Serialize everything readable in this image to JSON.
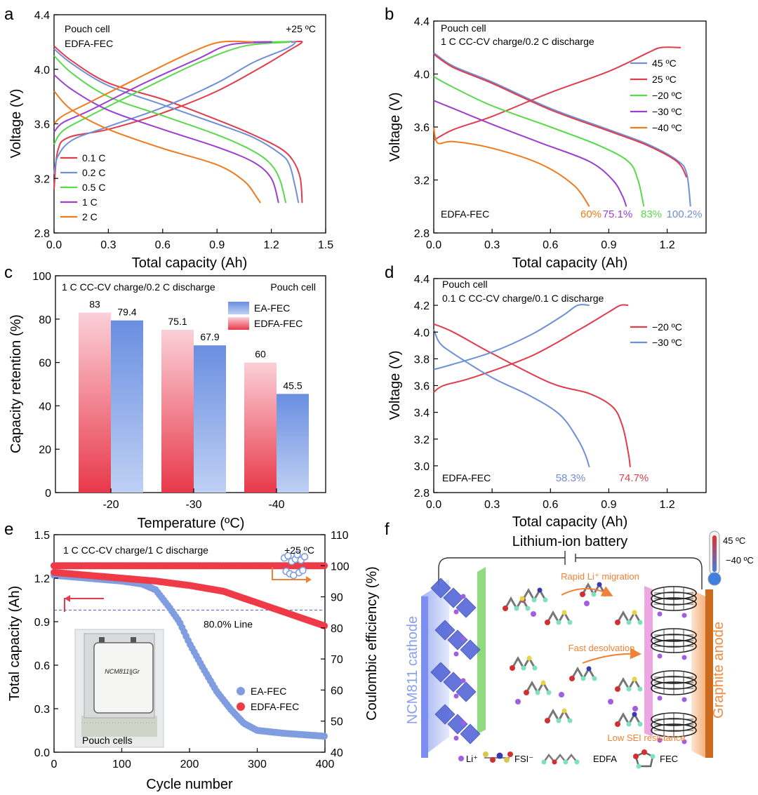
{
  "colors": {
    "red": "#e03c4c",
    "blue": "#6f8fd6",
    "green": "#59d94c",
    "purple": "#9b3fd0",
    "orange": "#f07a1e",
    "red_marker": "#ef3b47",
    "blue_marker": "#7f9de0",
    "annot_orange": "#f08236"
  },
  "chart_data": [
    {
      "id": "a",
      "panel_letter": "a",
      "type": "line",
      "title": "Pouch cell",
      "subtitle": "EDFA-FEC",
      "corner_label": "+25 ºC",
      "xlabel": "Total capacity (Ah)",
      "ylabel": "Voltage (V)",
      "xlim": [
        0,
        1.5
      ],
      "ylim": [
        2.8,
        4.4
      ],
      "x_ticks": [
        "0.0",
        "0.3",
        "0.6",
        "0.9",
        "1.2",
        "1.5"
      ],
      "y_ticks": [
        "2.8",
        "3.2",
        "3.6",
        "4.0",
        "4.4"
      ],
      "legend_position": "bottom-left",
      "series": [
        {
          "name": "0.1 C",
          "color": "#e03c4c",
          "charge": [
            [
              0,
              3.12
            ],
            [
              0.02,
              3.4
            ],
            [
              0.08,
              3.5
            ],
            [
              0.3,
              3.56
            ],
            [
              0.6,
              3.68
            ],
            [
              0.9,
              3.84
            ],
            [
              1.15,
              4.02
            ],
            [
              1.3,
              4.14
            ],
            [
              1.37,
              4.2
            ],
            [
              1.31,
              4.2
            ]
          ],
          "discharge": [
            [
              0,
              4.17
            ],
            [
              0.1,
              4.06
            ],
            [
              0.3,
              3.9
            ],
            [
              0.6,
              3.78
            ],
            [
              0.9,
              3.63
            ],
            [
              1.1,
              3.52
            ],
            [
              1.25,
              3.42
            ],
            [
              1.32,
              3.33
            ],
            [
              1.36,
              3.2
            ],
            [
              1.37,
              3.02
            ]
          ]
        },
        {
          "name": "0.2 C",
          "color": "#6f8fd6",
          "charge": [
            [
              0,
              3.23
            ],
            [
              0.02,
              3.36
            ],
            [
              0.1,
              3.48
            ],
            [
              0.3,
              3.58
            ],
            [
              0.6,
              3.72
            ],
            [
              0.9,
              3.9
            ],
            [
              1.1,
              4.05
            ],
            [
              1.28,
              4.15
            ],
            [
              1.33,
              4.2
            ],
            [
              1.25,
              4.2
            ]
          ],
          "discharge": [
            [
              0,
              4.15
            ],
            [
              0.1,
              4.04
            ],
            [
              0.3,
              3.88
            ],
            [
              0.6,
              3.74
            ],
            [
              0.9,
              3.6
            ],
            [
              1.1,
              3.5
            ],
            [
              1.25,
              3.38
            ],
            [
              1.3,
              3.3
            ],
            [
              1.33,
              3.15
            ],
            [
              1.35,
              3.02
            ]
          ]
        },
        {
          "name": "0.5 C",
          "color": "#59d94c",
          "charge": [
            [
              0,
              3.45
            ],
            [
              0.05,
              3.55
            ],
            [
              0.2,
              3.66
            ],
            [
              0.5,
              3.86
            ],
            [
              0.8,
              4.05
            ],
            [
              1.05,
              4.17
            ],
            [
              1.3,
              4.2
            ],
            [
              1.14,
              4.2
            ]
          ],
          "discharge": [
            [
              0,
              4.1
            ],
            [
              0.1,
              3.97
            ],
            [
              0.3,
              3.8
            ],
            [
              0.6,
              3.66
            ],
            [
              0.9,
              3.52
            ],
            [
              1.1,
              3.4
            ],
            [
              1.2,
              3.3
            ],
            [
              1.25,
              3.18
            ],
            [
              1.28,
              3.02
            ]
          ]
        },
        {
          "name": "1 C",
          "color": "#9b3fd0",
          "charge": [
            [
              0,
              3.54
            ],
            [
              0.05,
              3.61
            ],
            [
              0.2,
              3.7
            ],
            [
              0.5,
              3.9
            ],
            [
              0.8,
              4.08
            ],
            [
              0.97,
              4.18
            ],
            [
              1.2,
              4.2
            ],
            [
              1.06,
              4.2
            ]
          ],
          "discharge": [
            [
              0,
              3.96
            ],
            [
              0.1,
              3.85
            ],
            [
              0.3,
              3.7
            ],
            [
              0.6,
              3.56
            ],
            [
              0.9,
              3.43
            ],
            [
              1.1,
              3.32
            ],
            [
              1.2,
              3.2
            ],
            [
              1.24,
              3.02
            ]
          ]
        },
        {
          "name": "2 C",
          "color": "#f07a1e",
          "charge": [
            [
              0,
              3.6
            ],
            [
              0.05,
              3.66
            ],
            [
              0.2,
              3.76
            ],
            [
              0.5,
              3.96
            ],
            [
              0.75,
              4.12
            ],
            [
              0.92,
              4.2
            ],
            [
              1.1,
              4.2
            ]
          ],
          "discharge": [
            [
              0,
              3.84
            ],
            [
              0.1,
              3.7
            ],
            [
              0.3,
              3.56
            ],
            [
              0.6,
              3.42
            ],
            [
              0.9,
              3.3
            ],
            [
              1.05,
              3.18
            ],
            [
              1.12,
              3.06
            ],
            [
              1.14,
              3.02
            ]
          ]
        }
      ]
    },
    {
      "id": "b",
      "panel_letter": "b",
      "type": "line",
      "title": "Pouch cell",
      "subtitle": "1 C CC-CV charge/0.2 C discharge",
      "corner_label": "EDFA-FEC",
      "xlabel": "Total capacity (Ah)",
      "ylabel": "Voltage (V)",
      "xlim": [
        0,
        1.4
      ],
      "ylim": [
        2.8,
        4.4
      ],
      "x_ticks": [
        "0.0",
        "0.3",
        "0.6",
        "0.9",
        "1.2"
      ],
      "y_ticks": [
        "2.8",
        "3.2",
        "3.6",
        "4.0",
        "4.4"
      ],
      "legend_position": "top-right",
      "series": [
        {
          "name": "45 ºC",
          "color": "#6f8fd6",
          "label": "100.2%",
          "discharge": [
            [
              0,
              4.16
            ],
            [
              0.1,
              4.06
            ],
            [
              0.3,
              3.94
            ],
            [
              0.6,
              3.74
            ],
            [
              0.9,
              3.58
            ],
            [
              1.1,
              3.47
            ],
            [
              1.25,
              3.35
            ],
            [
              1.3,
              3.25
            ],
            [
              1.32,
              3.0
            ]
          ]
        },
        {
          "name": "25 ºC",
          "color": "#e03c4c",
          "charge": [
            [
              0,
              3.5
            ],
            [
              0.1,
              3.58
            ],
            [
              0.3,
              3.68
            ],
            [
              0.6,
              3.86
            ],
            [
              0.9,
              4.02
            ],
            [
              1.1,
              4.16
            ],
            [
              1.17,
              4.2
            ],
            [
              1.27,
              4.2
            ]
          ],
          "discharge": [
            [
              0,
              4.15
            ],
            [
              0.1,
              4.05
            ],
            [
              0.3,
              3.93
            ],
            [
              0.6,
              3.73
            ],
            [
              0.9,
              3.57
            ],
            [
              1.1,
              3.46
            ],
            [
              1.25,
              3.34
            ],
            [
              1.3,
              3.22
            ]
          ]
        },
        {
          "name": "−20 ºC",
          "color": "#59d94c",
          "label": "83%",
          "discharge": [
            [
              0,
              3.98
            ],
            [
              0.1,
              3.9
            ],
            [
              0.3,
              3.76
            ],
            [
              0.6,
              3.6
            ],
            [
              0.85,
              3.46
            ],
            [
              1.0,
              3.34
            ],
            [
              1.05,
              3.2
            ],
            [
              1.08,
              3.0
            ]
          ]
        },
        {
          "name": "−30 ºC",
          "color": "#9b3fd0",
          "label": "75.1%",
          "discharge": [
            [
              0,
              3.8
            ],
            [
              0.1,
              3.74
            ],
            [
              0.3,
              3.62
            ],
            [
              0.55,
              3.48
            ],
            [
              0.8,
              3.34
            ],
            [
              0.92,
              3.2
            ],
            [
              0.97,
              3.08
            ],
            [
              0.99,
              3.0
            ]
          ]
        },
        {
          "name": "−40 ºC",
          "color": "#f07a1e",
          "label": "60%",
          "discharge": [
            [
              0,
              3.6
            ],
            [
              0.02,
              3.48
            ],
            [
              0.1,
              3.49
            ],
            [
              0.3,
              3.44
            ],
            [
              0.55,
              3.32
            ],
            [
              0.72,
              3.16
            ],
            [
              0.8,
              3.0
            ]
          ]
        }
      ]
    },
    {
      "id": "c",
      "panel_letter": "c",
      "type": "bar",
      "title": "1 C CC-CV charge/0.2 C discharge",
      "corner_label": "Pouch cell",
      "xlabel": "Temperature (ºC)",
      "ylabel": "Capacity retention (%)",
      "ylim": [
        0,
        100
      ],
      "categories": [
        "-20",
        "-30",
        "-40"
      ],
      "y_ticks": [
        "0",
        "20",
        "40",
        "60",
        "80",
        "100"
      ],
      "legend_position": "top-right",
      "series": [
        {
          "name": "EDFA-FEC",
          "color": "#e8394a",
          "values": [
            83,
            75.1,
            60
          ],
          "labels": [
            "83",
            "75.1",
            "60"
          ]
        },
        {
          "name": "EA-FEC",
          "color": "#6a8fe0",
          "values": [
            79.4,
            67.9,
            45.5
          ],
          "labels": [
            "79.4",
            "67.9",
            "45.5"
          ]
        }
      ],
      "legend_order": [
        "EA-FEC",
        "EDFA-FEC"
      ]
    },
    {
      "id": "d",
      "panel_letter": "d",
      "type": "line",
      "title": "Pouch cell",
      "subtitle": "0.1 C CC-CV charge/0.1 C discharge",
      "corner_label": "EDFA-FEC",
      "xlabel": "Total capacity (Ah)",
      "ylabel": "Voltage (V)",
      "xlim": [
        0,
        1.4
      ],
      "ylim": [
        2.8,
        4.4
      ],
      "x_ticks": [
        "0.0",
        "0.3",
        "0.6",
        "0.9",
        "1.2"
      ],
      "y_ticks": [
        "2.8",
        "3.0",
        "3.2",
        "3.4",
        "3.6",
        "3.8",
        "4.0",
        "4.2",
        "4.4"
      ],
      "legend_position": "top-right",
      "series": [
        {
          "name": "−20 ºC",
          "color": "#e03c4c",
          "label": "74.7%",
          "charge": [
            [
              0,
              3.55
            ],
            [
              0.05,
              3.6
            ],
            [
              0.2,
              3.66
            ],
            [
              0.5,
              3.82
            ],
            [
              0.75,
              4.02
            ],
            [
              0.9,
              4.15
            ],
            [
              0.96,
              4.2
            ],
            [
              1.0,
              4.2
            ]
          ],
          "discharge": [
            [
              0,
              4.06
            ],
            [
              0.1,
              4.0
            ],
            [
              0.3,
              3.84
            ],
            [
              0.6,
              3.62
            ],
            [
              0.8,
              3.54
            ],
            [
              0.92,
              3.44
            ],
            [
              0.97,
              3.3
            ],
            [
              1.0,
              3.1
            ],
            [
              1.01,
              2.99
            ]
          ]
        },
        {
          "name": "−30 ºC",
          "color": "#6f8fd6",
          "label": "58.3%",
          "charge": [
            [
              0,
              3.72
            ],
            [
              0.1,
              3.76
            ],
            [
              0.3,
              3.85
            ],
            [
              0.5,
              3.98
            ],
            [
              0.66,
              4.12
            ],
            [
              0.74,
              4.2
            ],
            [
              0.8,
              4.2
            ]
          ],
          "discharge": [
            [
              0,
              4.02
            ],
            [
              0.03,
              3.92
            ],
            [
              0.1,
              3.84
            ],
            [
              0.3,
              3.66
            ],
            [
              0.5,
              3.52
            ],
            [
              0.65,
              3.38
            ],
            [
              0.74,
              3.2
            ],
            [
              0.78,
              3.08
            ],
            [
              0.8,
              2.99
            ]
          ]
        }
      ]
    },
    {
      "id": "e",
      "panel_letter": "e",
      "type": "scatter",
      "title": "1 C CC-CV charge/1 C discharge",
      "corner_label": "+25 ºC",
      "xlabel": "Cycle number",
      "ylabel": "Total capacity (Ah)",
      "y2label": "Coulombic efficiency (%)",
      "xlim": [
        0,
        400
      ],
      "ylim": [
        0,
        1.5
      ],
      "y2lim": [
        40,
        110
      ],
      "x_ticks": [
        "0",
        "100",
        "200",
        "300",
        "400"
      ],
      "y_ticks": [
        "0.0",
        "0.3",
        "0.6",
        "0.9",
        "1.2",
        "1.5"
      ],
      "y2_ticks": [
        "40",
        "50",
        "60",
        "70",
        "80",
        "90",
        "100",
        "110"
      ],
      "line_80_label": "80.0% Line",
      "line_80_value": 0.98,
      "inset_label": "Pouch cells",
      "inset_cell_text": "NCM811||Gr",
      "legend_position": "bottom-right",
      "series": [
        {
          "name": "EA-FEC",
          "color": "#7f9de0",
          "capacity": [
            [
              0,
              1.22
            ],
            [
              50,
              1.2
            ],
            [
              100,
              1.18
            ],
            [
              130,
              1.16
            ],
            [
              150,
              1.12
            ],
            [
              170,
              1.0
            ],
            [
              185,
              0.9
            ],
            [
              200,
              0.75
            ],
            [
              220,
              0.58
            ],
            [
              240,
              0.42
            ],
            [
              260,
              0.3
            ],
            [
              280,
              0.2
            ],
            [
              300,
              0.15
            ],
            [
              340,
              0.13
            ],
            [
              400,
              0.11
            ]
          ],
          "ce_mean": 100,
          "ce_scatter_x": [
            340,
            370
          ]
        },
        {
          "name": "EDFA-FEC",
          "color": "#ef3b47",
          "capacity": [
            [
              0,
              1.24
            ],
            [
              50,
              1.22
            ],
            [
              100,
              1.2
            ],
            [
              150,
              1.18
            ],
            [
              200,
              1.15
            ],
            [
              250,
              1.11
            ],
            [
              300,
              1.03
            ],
            [
              350,
              0.95
            ],
            [
              400,
              0.87
            ]
          ],
          "ce_mean": 100
        }
      ]
    }
  ],
  "schematic": {
    "panel_letter": "f",
    "title": "Lithium-ion battery",
    "cathode_label": "NCM811 cathode",
    "anode_label": "Graphite anode",
    "migration_label": "Rapid Li⁺ migration",
    "desolvation_label": "Fast desolvation",
    "sei_label": "Low SEI resistance",
    "temp_high": "45 ºC",
    "temp_low": "−40 ºC",
    "legend": [
      {
        "symbol": "li-ion",
        "text": "Li⁺"
      },
      {
        "symbol": "fsi",
        "text": "FSI⁻"
      },
      {
        "symbol": "edfa",
        "text": "EDFA"
      },
      {
        "symbol": "fec",
        "text": "FEC"
      }
    ]
  }
}
